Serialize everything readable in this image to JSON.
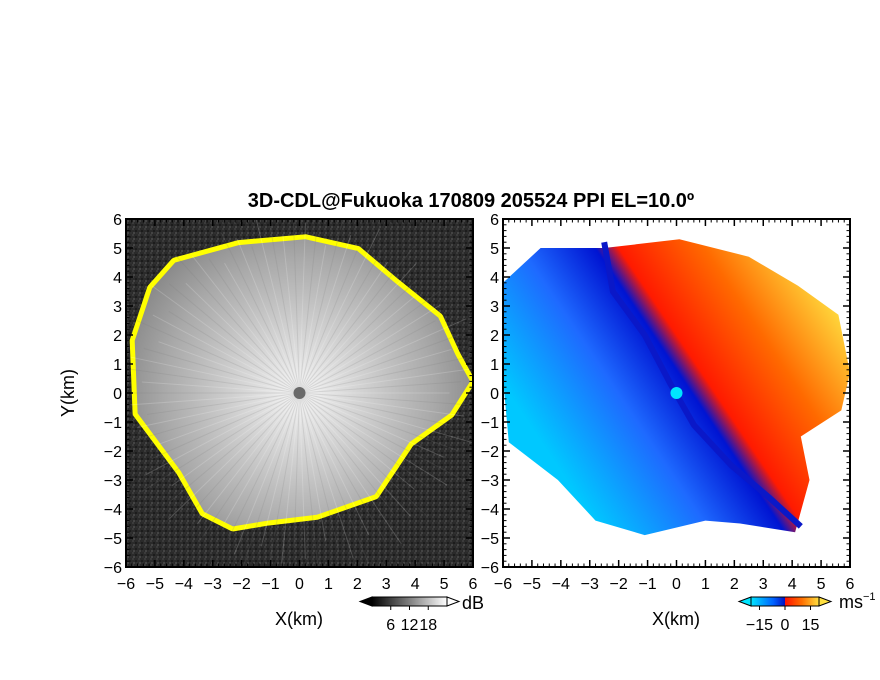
{
  "title": "3D-CDL@Fukuoka 170809 205524 PPI EL=10.0º",
  "chart_data": [
    {
      "type": "heatmap",
      "panel": "left",
      "xlabel": "X(km)",
      "ylabel": "Y(km)",
      "xlim": [
        -6,
        6
      ],
      "ylim": [
        -6,
        6
      ],
      "xticks": [
        "-6",
        "-5",
        "-4",
        "-3",
        "-2",
        "-1",
        "0",
        "1",
        "2",
        "3",
        "4",
        "5",
        "6"
      ],
      "yticks": [
        "-6",
        "-5",
        "-4",
        "-3",
        "-2",
        "-1",
        "0",
        "1",
        "2",
        "3",
        "4",
        "5",
        "6"
      ],
      "colorbar": {
        "unit": "dB",
        "range": [
          0,
          24
        ],
        "ticks": [
          6,
          12,
          18
        ],
        "tick_labels": [
          "6",
          "12",
          "18"
        ],
        "colormap": "grayscale"
      },
      "echo_boundary_km": [
        [
          -4.3,
          4.5
        ],
        [
          -2.1,
          5.1
        ],
        [
          0.2,
          5.3
        ],
        [
          2.0,
          4.9
        ],
        [
          3.3,
          3.8
        ],
        [
          4.8,
          2.6
        ],
        [
          5.4,
          1.3
        ],
        [
          5.9,
          0.4
        ],
        [
          5.2,
          -0.7
        ],
        [
          3.8,
          -1.7
        ],
        [
          2.6,
          -3.5
        ],
        [
          0.6,
          -4.2
        ],
        [
          -1.1,
          -4.4
        ],
        [
          -2.3,
          -4.6
        ],
        [
          -3.3,
          -4.1
        ],
        [
          -4.1,
          -2.7
        ],
        [
          -5.6,
          -0.7
        ],
        [
          -5.7,
          1.8
        ],
        [
          -5.1,
          3.6
        ]
      ],
      "radar_center": [
        0,
        0
      ],
      "colors": {
        "echo_edge": "#ffff00",
        "background_noise": "#262626",
        "center_marker": "#6a6a6a"
      }
    },
    {
      "type": "heatmap",
      "panel": "right",
      "xlabel": "X(km)",
      "xlim": [
        -6,
        6
      ],
      "ylim": [
        -6,
        6
      ],
      "xticks": [
        "-6",
        "-5",
        "-4",
        "-3",
        "-2",
        "-1",
        "0",
        "1",
        "2",
        "3",
        "4",
        "5",
        "6"
      ],
      "yticks": [
        "-6",
        "-5",
        "-4",
        "-3",
        "-2",
        "-1",
        "0",
        "1",
        "2",
        "3",
        "4",
        "5",
        "6"
      ],
      "colorbar": {
        "unit": "ms",
        "unit_exponent": "−1",
        "range": [
          -20,
          20
        ],
        "ticks": [
          -15,
          0,
          15
        ],
        "tick_labels": [
          "−15",
          "0",
          "15"
        ],
        "colormap": "cyan-blue-red-yellow"
      },
      "velocity_boundary_km": [
        [
          -6.0,
          3.8
        ],
        [
          -4.7,
          5.0
        ],
        [
          -2.5,
          5.0
        ],
        [
          0.1,
          5.3
        ],
        [
          2.5,
          4.7
        ],
        [
          4.2,
          3.7
        ],
        [
          5.6,
          2.7
        ],
        [
          6.0,
          0.7
        ],
        [
          5.7,
          -0.6
        ],
        [
          4.3,
          -1.5
        ],
        [
          4.6,
          -3.0
        ],
        [
          4.1,
          -4.8
        ],
        [
          2.2,
          -4.5
        ],
        [
          1.0,
          -4.4
        ],
        [
          -1.1,
          -4.9
        ],
        [
          -2.8,
          -4.4
        ],
        [
          -4.1,
          -3.0
        ],
        [
          -5.8,
          -1.7
        ],
        [
          -6.0,
          0.5
        ]
      ],
      "zero_line_km": [
        [
          -2.5,
          5.2
        ],
        [
          -2.2,
          3.5
        ],
        [
          -1.1,
          2.0
        ],
        [
          -0.2,
          0.3
        ],
        [
          0.6,
          -1.1
        ],
        [
          1.9,
          -2.5
        ],
        [
          3.2,
          -3.6
        ],
        [
          4.3,
          -4.6
        ]
      ],
      "radar_center": [
        0,
        0
      ],
      "colors": {
        "approaching_far": "#00c8ff",
        "approaching_near": "#0014d2",
        "receding_near": "#ff1a00",
        "receding_far": "#ffdf40",
        "center_marker": "#00e5ff"
      }
    }
  ]
}
